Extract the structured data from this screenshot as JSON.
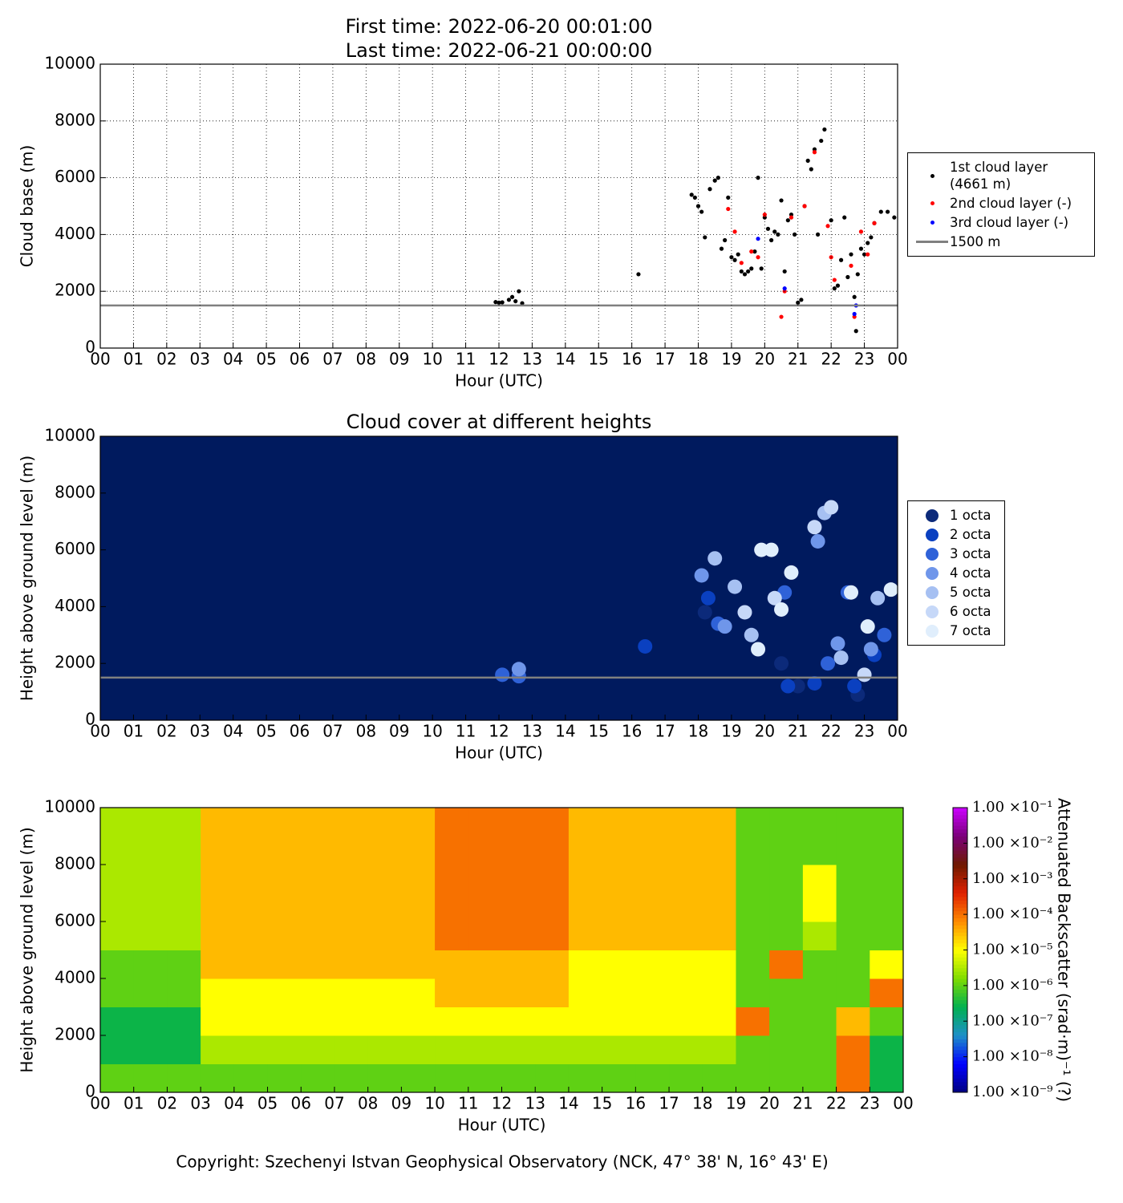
{
  "chart_data": [
    {
      "type": "scatter",
      "title": [
        "First time: 2022-06-20 00:01:00",
        "Last time: 2022-06-21 00:00:00"
      ],
      "xlabel": "Hour (UTC)",
      "ylabel": "Cloud base (m)",
      "grid": true,
      "legend": "outside right",
      "xlim": [
        0,
        24
      ],
      "ylim": [
        0,
        10000
      ],
      "yticks": [
        0,
        2000,
        4000,
        6000,
        8000,
        10000
      ],
      "xticks": [
        {
          "value": 0,
          "label": "00"
        },
        {
          "value": 1,
          "label": "01"
        },
        {
          "value": 2,
          "label": "02"
        },
        {
          "value": 3,
          "label": "03"
        },
        {
          "value": 4,
          "label": "04"
        },
        {
          "value": 5,
          "label": "05"
        },
        {
          "value": 6,
          "label": "06"
        },
        {
          "value": 7,
          "label": "07"
        },
        {
          "value": 8,
          "label": "08"
        },
        {
          "value": 9,
          "label": "09"
        },
        {
          "value": 10,
          "label": "10"
        },
        {
          "value": 11,
          "label": "11"
        },
        {
          "value": 12,
          "label": "12"
        },
        {
          "value": 13,
          "label": "13"
        },
        {
          "value": 14,
          "label": "14"
        },
        {
          "value": 15,
          "label": "15"
        },
        {
          "value": 16,
          "label": "16"
        },
        {
          "value": 17,
          "label": "17"
        },
        {
          "value": 18,
          "label": "18"
        },
        {
          "value": 19,
          "label": "19"
        },
        {
          "value": 20,
          "label": "20"
        },
        {
          "value": 21,
          "label": "21"
        },
        {
          "value": 22,
          "label": "22"
        },
        {
          "value": 23,
          "label": "23"
        },
        {
          "value": 24,
          "label": "00"
        }
      ],
      "series": [
        {
          "name": "1st cloud layer (4661 m)",
          "color": "#000000",
          "x": [
            11.9,
            12.0,
            12.1,
            12.3,
            12.4,
            12.5,
            12.6,
            12.7,
            16.2,
            17.8,
            17.9,
            18.0,
            18.1,
            18.2,
            18.35,
            18.5,
            18.6,
            18.7,
            18.8,
            18.9,
            19.0,
            19.1,
            19.2,
            19.3,
            19.4,
            19.5,
            19.6,
            19.7,
            19.8,
            19.9,
            20.0,
            20.1,
            20.2,
            20.3,
            20.4,
            20.5,
            20.6,
            20.7,
            20.8,
            20.9,
            21.0,
            21.1,
            21.2,
            21.3,
            21.4,
            21.5,
            21.6,
            21.7,
            21.8,
            22.0,
            22.1,
            22.2,
            22.3,
            22.4,
            22.5,
            22.6,
            22.7,
            22.75,
            22.8,
            22.9,
            23.0,
            23.1,
            23.2,
            23.3,
            23.5,
            23.7,
            23.9
          ],
          "y": [
            1620,
            1600,
            1610,
            1700,
            1800,
            1650,
            2000,
            1580,
            2600,
            5400,
            5300,
            5000,
            4800,
            3900,
            5600,
            5900,
            6000,
            3500,
            3800,
            5300,
            3200,
            3100,
            3300,
            2700,
            2600,
            2700,
            2800,
            3400,
            6000,
            2800,
            4600,
            4200,
            3800,
            4100,
            4000,
            5200,
            2700,
            4500,
            4700,
            4000,
            1600,
            1700,
            5000,
            6600,
            6300,
            7000,
            4000,
            7300,
            7700,
            4500,
            2100,
            2200,
            3100,
            4600,
            2500,
            3300,
            1800,
            600,
            2600,
            3500,
            3300,
            3700,
            3900,
            4400,
            4800,
            4800,
            4600
          ]
        },
        {
          "name": "2nd cloud layer (-)",
          "color": "#ff0000",
          "x": [
            18.9,
            19.1,
            19.3,
            19.6,
            19.8,
            20.0,
            20.5,
            20.6,
            20.8,
            21.2,
            21.5,
            21.9,
            22.0,
            22.1,
            22.6,
            22.7,
            22.9,
            23.1,
            23.3
          ],
          "y": [
            4900,
            4100,
            3000,
            3400,
            3200,
            4700,
            1100,
            2000,
            4600,
            5000,
            6900,
            4300,
            3200,
            2400,
            2900,
            1100,
            4100,
            3300,
            4400
          ]
        },
        {
          "name": "3rd cloud layer (-)",
          "color": "#0000ff",
          "x": [
            19.8,
            20.6,
            22.7,
            22.75
          ],
          "y": [
            3850,
            2100,
            1200,
            1500
          ]
        }
      ],
      "hline": {
        "name": "1500 m",
        "value": 1500,
        "color": "#808080"
      }
    },
    {
      "type": "scatter",
      "title": "Cloud cover at different heights",
      "xlabel": "Hour (UTC)",
      "ylabel": "Height above ground level (m)",
      "grid": false,
      "legend": "outside right",
      "background": "#001a5e",
      "xlim": [
        0,
        24
      ],
      "ylim": [
        0,
        10000
      ],
      "yticks": [
        0,
        2000,
        4000,
        6000,
        8000,
        10000
      ],
      "xticks": [
        {
          "value": 0,
          "label": "00"
        },
        {
          "value": 1,
          "label": "01"
        },
        {
          "value": 2,
          "label": "02"
        },
        {
          "value": 3,
          "label": "03"
        },
        {
          "value": 4,
          "label": "04"
        },
        {
          "value": 5,
          "label": "05"
        },
        {
          "value": 6,
          "label": "06"
        },
        {
          "value": 7,
          "label": "07"
        },
        {
          "value": 8,
          "label": "08"
        },
        {
          "value": 9,
          "label": "09"
        },
        {
          "value": 10,
          "label": "10"
        },
        {
          "value": 11,
          "label": "11"
        },
        {
          "value": 12,
          "label": "12"
        },
        {
          "value": 13,
          "label": "13"
        },
        {
          "value": 14,
          "label": "14"
        },
        {
          "value": 15,
          "label": "15"
        },
        {
          "value": 16,
          "label": "16"
        },
        {
          "value": 17,
          "label": "17"
        },
        {
          "value": 18,
          "label": "18"
        },
        {
          "value": 19,
          "label": "19"
        },
        {
          "value": 20,
          "label": "20"
        },
        {
          "value": 21,
          "label": "21"
        },
        {
          "value": 22,
          "label": "22"
        },
        {
          "value": 23,
          "label": "23"
        },
        {
          "value": 24,
          "label": "00"
        }
      ],
      "series": [
        {
          "name": "1 octa",
          "color": "#0c2a7a",
          "x": [
            20.5,
            21.0,
            18.2,
            22.8
          ],
          "y": [
            2000,
            1200,
            3800,
            900
          ]
        },
        {
          "name": "2 octa",
          "color": "#0a40c0",
          "x": [
            16.4,
            18.3,
            20.7,
            22.7,
            23.3,
            21.5
          ],
          "y": [
            2600,
            4300,
            1200,
            1200,
            2300,
            1300
          ]
        },
        {
          "name": "3 octa",
          "color": "#2f62d8",
          "x": [
            12.1,
            12.6,
            18.6,
            20.6,
            22.5,
            23.6,
            21.9
          ],
          "y": [
            1600,
            1550,
            3400,
            4500,
            4500,
            3000,
            2000
          ]
        },
        {
          "name": "4 octa",
          "color": "#6f96ea",
          "x": [
            12.6,
            18.1,
            18.8,
            21.6,
            22.2,
            23.2
          ],
          "y": [
            1800,
            5100,
            3300,
            6300,
            2700,
            2500
          ]
        },
        {
          "name": "5 octa",
          "color": "#a6c0f2",
          "x": [
            18.5,
            19.1,
            19.6,
            21.8,
            22.3,
            23.4
          ],
          "y": [
            5700,
            4700,
            3000,
            7300,
            2200,
            4300
          ]
        },
        {
          "name": "6 octa",
          "color": "#c6d8f8",
          "x": [
            19.4,
            20.3,
            21.5,
            22.0,
            23.0
          ],
          "y": [
            3800,
            4300,
            6800,
            7500,
            1600
          ]
        },
        {
          "name": "7 octa",
          "color": "#e0eefc",
          "x": [
            19.9,
            20.2,
            19.8,
            20.8,
            23.1,
            23.8,
            22.6,
            20.5
          ],
          "y": [
            6000,
            6000,
            2500,
            5200,
            3300,
            4600,
            4500,
            3900
          ]
        }
      ],
      "hline": {
        "value": 1500,
        "color": "#808080"
      }
    },
    {
      "type": "heatmap",
      "xlabel": "Hour (UTC)",
      "ylabel": "Height above ground level (m)",
      "colorbar_label": "Attenuated Backscatter (srad·m)⁻¹ (?)",
      "zscale": "log",
      "zlim": [
        1e-09,
        0.1
      ],
      "colormap": [
        "#00007f",
        "#0000ff",
        "#1e90c8",
        "#00b050",
        "#7fdc00",
        "#ffff00",
        "#ff8c00",
        "#e02000",
        "#6e1a00",
        "#7a007a",
        "#cc00ff"
      ],
      "zticks": [
        {
          "value": 1e-09,
          "label": "1.00 ×10⁻⁹"
        },
        {
          "value": 1e-08,
          "label": "1.00 ×10⁻⁸"
        },
        {
          "value": 1e-07,
          "label": "1.00 ×10⁻⁷"
        },
        {
          "value": 1e-06,
          "label": "1.00 ×10⁻⁶"
        },
        {
          "value": 1e-05,
          "label": "1.00 ×10⁻⁵"
        },
        {
          "value": 0.0001,
          "label": "1.00 ×10⁻⁴"
        },
        {
          "value": 0.001,
          "label": "1.00 ×10⁻³"
        },
        {
          "value": 0.01,
          "label": "1.00 ×10⁻²"
        },
        {
          "value": 0.1,
          "label": "1.00 ×10⁻¹"
        }
      ],
      "xlim": [
        0,
        24
      ],
      "ylim": [
        0,
        10000
      ],
      "yticks": [
        0,
        2000,
        4000,
        6000,
        8000,
        10000
      ],
      "xticks": [
        {
          "value": 0,
          "label": "00"
        },
        {
          "value": 1,
          "label": "01"
        },
        {
          "value": 2,
          "label": "02"
        },
        {
          "value": 3,
          "label": "03"
        },
        {
          "value": 4,
          "label": "04"
        },
        {
          "value": 5,
          "label": "05"
        },
        {
          "value": 6,
          "label": "06"
        },
        {
          "value": 7,
          "label": "07"
        },
        {
          "value": 8,
          "label": "08"
        },
        {
          "value": 9,
          "label": "09"
        },
        {
          "value": 10,
          "label": "10"
        },
        {
          "value": 11,
          "label": "11"
        },
        {
          "value": 12,
          "label": "12"
        },
        {
          "value": 13,
          "label": "13"
        },
        {
          "value": 14,
          "label": "14"
        },
        {
          "value": 15,
          "label": "15"
        },
        {
          "value": 16,
          "label": "16"
        },
        {
          "value": 17,
          "label": "17"
        },
        {
          "value": 18,
          "label": "18"
        },
        {
          "value": 19,
          "label": "19"
        },
        {
          "value": 20,
          "label": "20"
        },
        {
          "value": 21,
          "label": "21"
        },
        {
          "value": 22,
          "label": "22"
        },
        {
          "value": 23,
          "label": "23"
        },
        {
          "value": 24,
          "label": "00"
        }
      ],
      "x_edges": [
        0,
        1,
        2,
        3,
        4,
        5,
        6,
        7,
        8,
        9,
        10,
        11,
        12,
        13,
        14,
        15,
        16,
        17,
        18,
        19,
        20,
        21,
        22,
        23,
        24
      ],
      "y_edges": [
        0,
        1000,
        2000,
        3000,
        4000,
        5000,
        6000,
        7000,
        8000,
        9000,
        10000
      ],
      "z": [
        [
          1e-06,
          1e-06,
          1e-06,
          1e-06,
          1e-06,
          1e-06,
          1e-06,
          1e-06,
          1e-06,
          1e-06,
          1e-06,
          1e-06,
          1e-06,
          1e-06,
          1e-06,
          1e-06,
          1e-06,
          1e-06,
          1e-06,
          1e-06,
          1e-06,
          1e-06,
          0.0001,
          3e-07
        ],
        [
          3e-07,
          3e-07,
          3e-07,
          3e-06,
          3e-06,
          3e-06,
          3e-06,
          3e-06,
          3e-06,
          3e-06,
          3e-06,
          3e-06,
          3e-06,
          3e-06,
          3e-06,
          3e-06,
          3e-06,
          3e-06,
          3e-06,
          1e-06,
          1e-06,
          1e-06,
          0.0001,
          3e-07
        ],
        [
          3e-07,
          3e-07,
          3e-07,
          1e-05,
          1e-05,
          1e-05,
          1e-05,
          1e-05,
          1e-05,
          1e-05,
          1e-05,
          1e-05,
          1e-05,
          1e-05,
          1e-05,
          1e-05,
          1e-05,
          1e-05,
          1e-05,
          0.0001,
          1e-06,
          1e-06,
          3e-05,
          1e-06
        ],
        [
          1e-06,
          1e-06,
          1e-06,
          1e-05,
          1e-05,
          1e-05,
          1e-05,
          1e-05,
          1e-05,
          1e-05,
          3e-05,
          3e-05,
          3e-05,
          3e-05,
          1e-05,
          1e-05,
          1e-05,
          1e-05,
          1e-05,
          1e-06,
          1e-06,
          1e-06,
          1e-06,
          0.0001
        ],
        [
          1e-06,
          1e-06,
          1e-06,
          3e-05,
          3e-05,
          3e-05,
          3e-05,
          3e-05,
          3e-05,
          3e-05,
          3e-05,
          3e-05,
          3e-05,
          3e-05,
          1e-05,
          1e-05,
          1e-05,
          1e-05,
          1e-05,
          1e-06,
          0.0001,
          1e-06,
          1e-06,
          1e-05
        ],
        [
          3e-06,
          3e-06,
          3e-06,
          3e-05,
          3e-05,
          3e-05,
          3e-05,
          3e-05,
          3e-05,
          3e-05,
          0.0001,
          0.0001,
          0.0001,
          0.0001,
          3e-05,
          3e-05,
          3e-05,
          3e-05,
          3e-05,
          1e-06,
          1e-06,
          3e-06,
          1e-06,
          1e-06
        ],
        [
          3e-06,
          3e-06,
          3e-06,
          3e-05,
          3e-05,
          3e-05,
          3e-05,
          3e-05,
          3e-05,
          3e-05,
          0.0001,
          0.0001,
          0.0001,
          0.0001,
          3e-05,
          3e-05,
          3e-05,
          3e-05,
          3e-05,
          1e-06,
          1e-06,
          1e-05,
          1e-06,
          1e-06
        ],
        [
          3e-06,
          3e-06,
          3e-06,
          3e-05,
          3e-05,
          3e-05,
          3e-05,
          3e-05,
          3e-05,
          3e-05,
          0.0001,
          0.0001,
          0.0001,
          0.0001,
          3e-05,
          3e-05,
          3e-05,
          3e-05,
          3e-05,
          1e-06,
          1e-06,
          1e-05,
          1e-06,
          1e-06
        ],
        [
          3e-06,
          3e-06,
          3e-06,
          3e-05,
          3e-05,
          3e-05,
          3e-05,
          3e-05,
          3e-05,
          3e-05,
          0.0001,
          0.0001,
          0.0001,
          0.0001,
          3e-05,
          3e-05,
          3e-05,
          3e-05,
          3e-05,
          1e-06,
          1e-06,
          1e-06,
          1e-06,
          1e-06
        ],
        [
          3e-06,
          3e-06,
          3e-06,
          3e-05,
          3e-05,
          3e-05,
          3e-05,
          3e-05,
          3e-05,
          3e-05,
          0.0001,
          0.0001,
          0.0001,
          0.0001,
          3e-05,
          3e-05,
          3e-05,
          3e-05,
          3e-05,
          1e-06,
          1e-06,
          1e-06,
          1e-06,
          1e-06
        ]
      ]
    }
  ],
  "footer": "Copyright: Szechenyi Istvan Geophysical Observatory (NCK, 47° 38' N, 16° 43' E)"
}
